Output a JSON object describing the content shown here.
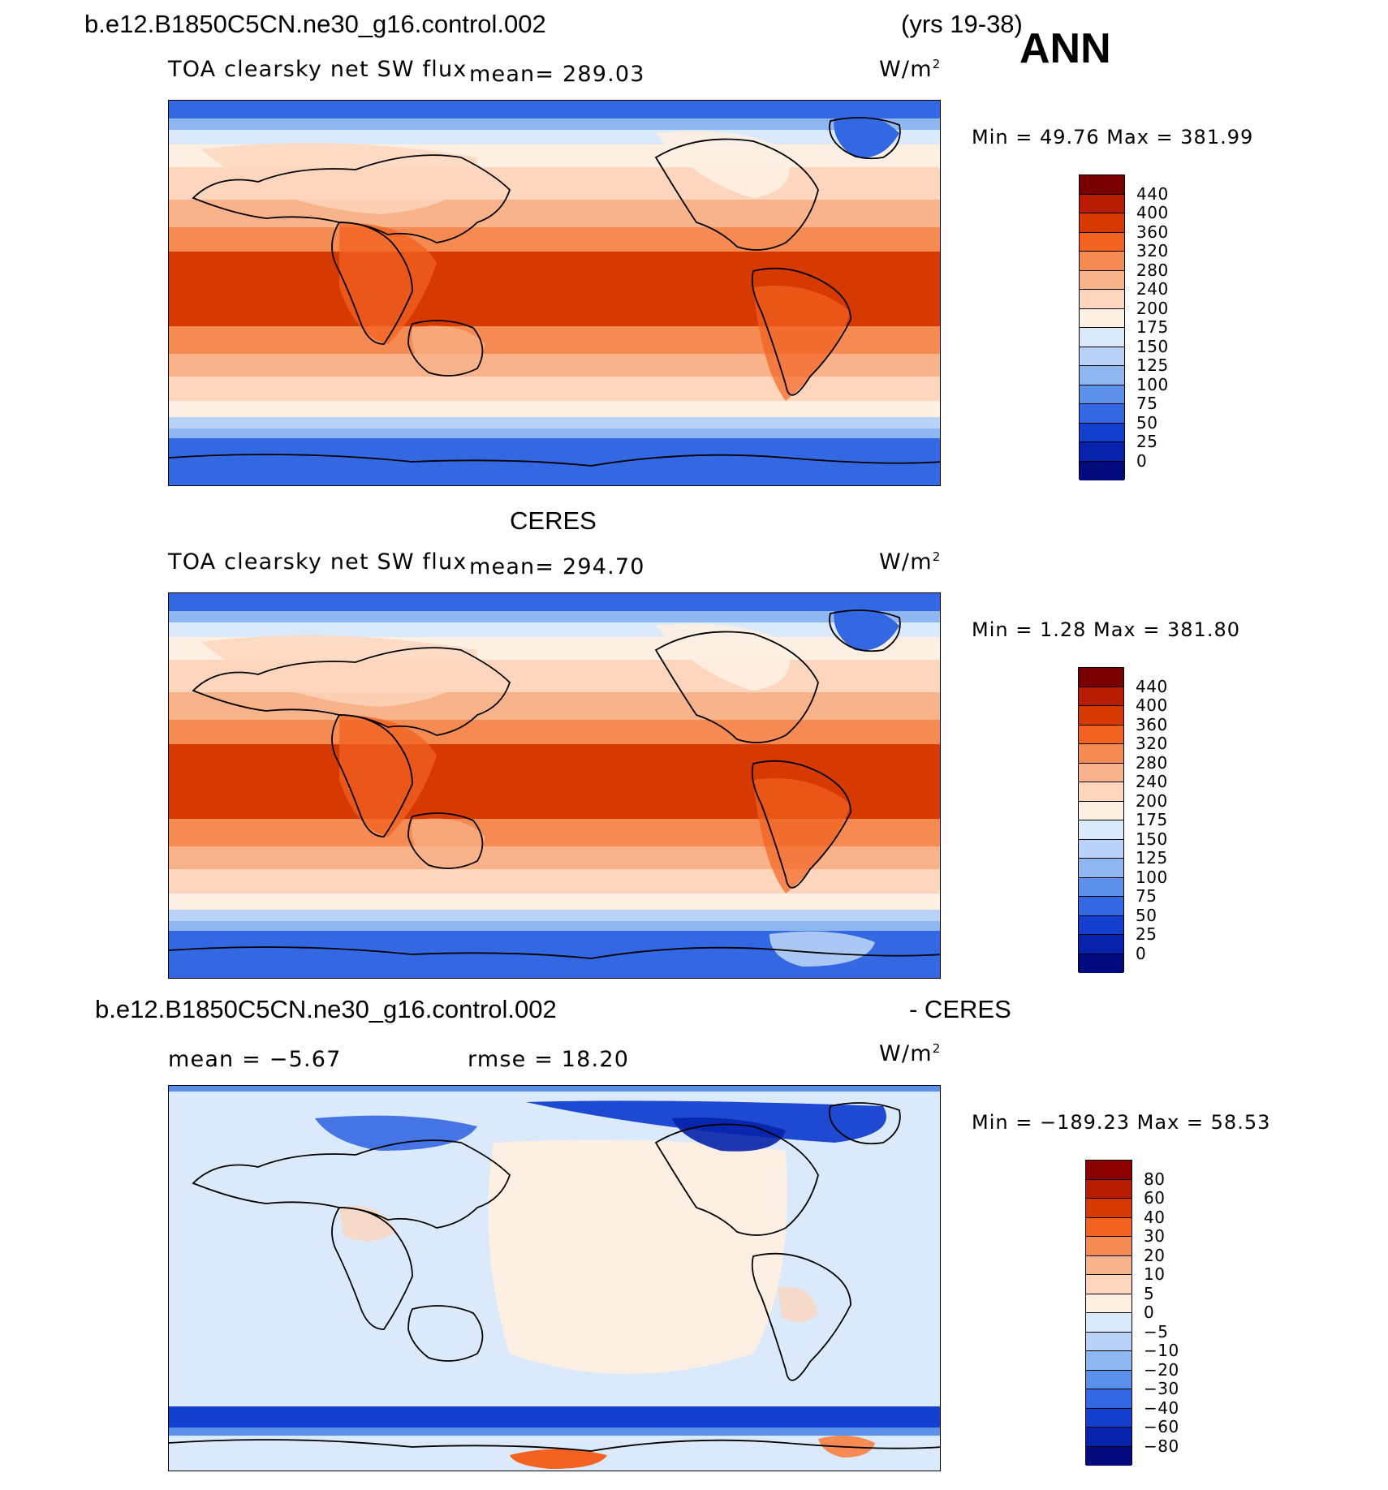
{
  "header": {
    "case_title": "b.e12.B1850C5CN.ne30_g16.control.002",
    "years": "(yrs 19-38)",
    "season": "ANN"
  },
  "panels": [
    {
      "variable": "TOA clearsky net SW flux",
      "mean": "mean= 289.03",
      "units": "W/m",
      "units_sup": "2",
      "minmax": "Min =   49.76 Max = 381.99",
      "levels": [
        "440",
        "400",
        "360",
        "320",
        "280",
        "240",
        "200",
        "175",
        "150",
        "125",
        "100",
        "75",
        "50",
        "25",
        "0"
      ],
      "colors": [
        "#7a0000",
        "#b81c00",
        "#d63a00",
        "#f26220",
        "#f58a52",
        "#f9b38a",
        "#fdd6bd",
        "#fdf0e2",
        "#dbeafb",
        "#b8d3f7",
        "#8eb7f2",
        "#5d90eb",
        "#3468e2",
        "#1440d0",
        "#0722aa",
        "#030a7d"
      ],
      "map_kind": "field"
    },
    {
      "title": "CERES",
      "variable": "TOA clearsky net SW flux",
      "mean": "mean= 294.70",
      "units": "W/m",
      "units_sup": "2",
      "minmax": "Min =    1.28 Max = 381.80",
      "levels": [
        "440",
        "400",
        "360",
        "320",
        "280",
        "240",
        "200",
        "175",
        "150",
        "125",
        "100",
        "75",
        "50",
        "25",
        "0"
      ],
      "colors": [
        "#7a0000",
        "#b81c00",
        "#d63a00",
        "#f26220",
        "#f58a52",
        "#f9b38a",
        "#fdd6bd",
        "#fdf0e2",
        "#dbeafb",
        "#b8d3f7",
        "#8eb7f2",
        "#5d90eb",
        "#3468e2",
        "#1440d0",
        "#0722aa",
        "#030a7d"
      ],
      "map_kind": "field"
    },
    {
      "case_title": "b.e12.B1850C5CN.ne30_g16.control.002",
      "minus": "- CERES",
      "mean": "mean =   −5.67",
      "rmse": "rmse =   18.20",
      "units": "W/m",
      "units_sup": "2",
      "minmax": "Min = −189.23 Max =   58.53",
      "levels": [
        "80",
        "60",
        "40",
        "30",
        "20",
        "10",
        "5",
        "0",
        "−5",
        "−10",
        "−20",
        "−30",
        "−40",
        "−60",
        "−80"
      ],
      "colors": [
        "#8a0000",
        "#b81c00",
        "#d63a00",
        "#f26220",
        "#f58a52",
        "#f9b38a",
        "#fdd6bd",
        "#fdf0e2",
        "#dbeafb",
        "#b8d3f7",
        "#8eb7f2",
        "#5d90eb",
        "#3468e2",
        "#1440d0",
        "#0722aa",
        "#030a7d"
      ],
      "map_kind": "difference"
    }
  ]
}
